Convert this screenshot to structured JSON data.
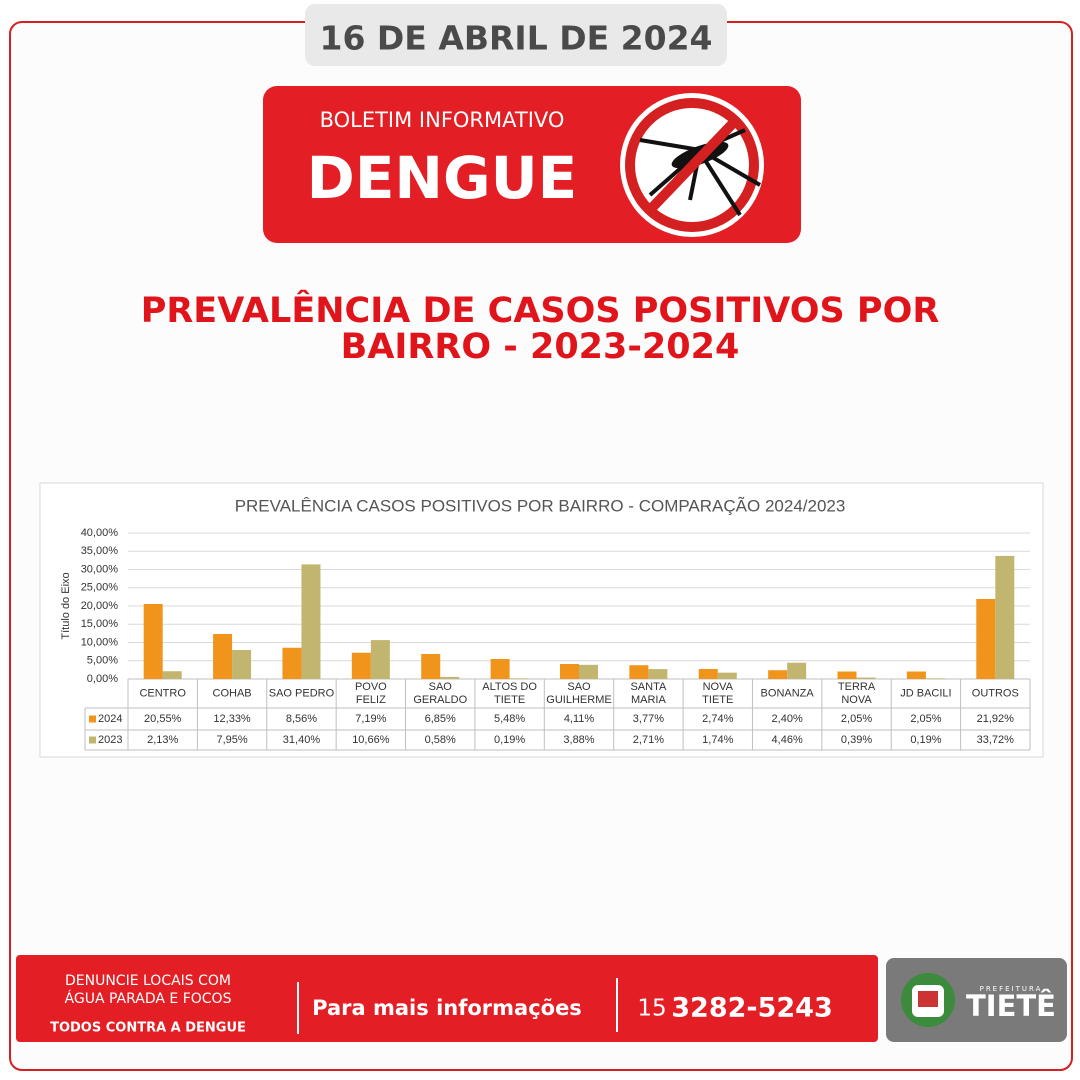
{
  "header": {
    "date": "16 DE ABRIL DE 2024",
    "kicker": "BOLETIM INFORMATIVO",
    "title": "DENGUE"
  },
  "headline": [
    "PREVALÊNCIA DE CASOS POSITIVOS POR",
    "BAIRRO - 2023-2024"
  ],
  "chart_data": {
    "type": "bar",
    "title": "PREVALÊNCIA CASOS POSITIVOS POR BAIRRO - COMPARAÇÃO 2024/2023",
    "y_label": "Título do Eixo",
    "categories": [
      "CENTRO",
      "COHAB",
      "SAO PEDRO",
      "POVO\nFELIZ",
      "SAO\nGERALDO",
      "ALTOS DO\nTIETE",
      "SAO\nGUILHERME",
      "SANTA\nMARIA",
      "NOVA\nTIETE",
      "BONANZA",
      "TERRA\nNOVA",
      "JD BACILI",
      "OUTROS"
    ],
    "series": [
      {
        "name": "2024",
        "color": "#f0941c",
        "values": [
          20.55,
          12.33,
          8.56,
          7.19,
          6.85,
          5.48,
          4.11,
          3.77,
          2.74,
          2.4,
          2.05,
          2.05,
          21.92
        ],
        "value_labels": [
          "20,55%",
          "12,33%",
          "8,56%",
          "7,19%",
          "6,85%",
          "5,48%",
          "4,11%",
          "3,77%",
          "2,74%",
          "2,40%",
          "2,05%",
          "2,05%",
          "21,92%"
        ]
      },
      {
        "name": "2023",
        "color": "#c2b56f",
        "values": [
          2.13,
          7.95,
          31.4,
          10.66,
          0.58,
          0.19,
          3.88,
          2.71,
          1.74,
          4.46,
          0.39,
          0.19,
          33.72
        ],
        "value_labels": [
          "2,13%",
          "7,95%",
          "31,40%",
          "10,66%",
          "0,58%",
          "0,19%",
          "3,88%",
          "2,71%",
          "1,74%",
          "4,46%",
          "0,39%",
          "0,19%",
          "33,72%"
        ]
      }
    ],
    "ylim": [
      0,
      40
    ],
    "yticks": [
      {
        "value": 0,
        "label": "0,00%"
      },
      {
        "value": 5,
        "label": "5,00%"
      },
      {
        "value": 10,
        "label": "10,00%"
      },
      {
        "value": 15,
        "label": "15,00%"
      },
      {
        "value": 20,
        "label": "20,00%"
      },
      {
        "value": 25,
        "label": "25,00%"
      },
      {
        "value": 30,
        "label": "30,00%"
      },
      {
        "value": 35,
        "label": "35,00%"
      },
      {
        "value": 40,
        "label": "40,00%"
      }
    ],
    "grid": true
  },
  "footer": {
    "left": [
      "DENUNCIE LOCAIS COM",
      "ÁGUA PARADA E FOCOS"
    ],
    "slogan": "TODOS CONTRA A DENGUE",
    "info": "Para mais informações",
    "phone_prefix": "15",
    "phone": "3282-5243"
  },
  "logo": {
    "small": "PREFEITURA",
    "name": "TIETÊ"
  }
}
